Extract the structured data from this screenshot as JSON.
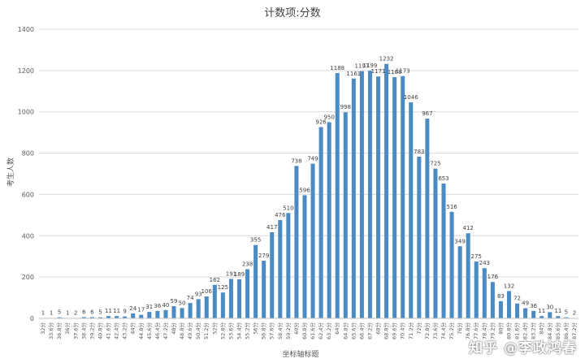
{
  "watermark": "知乎 @李政鸿春",
  "colors": {
    "bar": "#4a8bc4",
    "grid": "#d9d9d9",
    "text": "#595959",
    "label": "#404040"
  },
  "chart_data": {
    "type": "bar",
    "title": "计数项:分数",
    "xlabel": "坐标轴标题",
    "ylabel": "考生人数",
    "ylim": [
      0,
      1400
    ],
    "yticks": [
      0,
      200,
      400,
      600,
      800,
      1000,
      1200,
      1400
    ],
    "grid": true,
    "legend": "none",
    "categories": [
      "32分",
      "33.6分",
      "36.8分",
      "36分",
      "37.6分",
      "38.4分",
      "39.2分",
      "40.8分",
      "41.6分",
      "42.4分",
      "43.2分",
      "44分",
      "44.8分",
      "45.6分",
      "46.4分",
      "47.2分",
      "48分",
      "48.8分",
      "49.6分",
      "50.4分",
      "51.2分",
      "52分",
      "52.8分",
      "53.6分",
      "54.4分",
      "55.2分",
      "56分",
      "56.8分",
      "57.6分",
      "58.4分",
      "59.2分",
      "60分",
      "60.8分",
      "61.6分",
      "62.4分",
      "63.2分",
      "64分",
      "64.8分",
      "65.6分",
      "66.4分",
      "67.2分",
      "68分",
      "68.8分",
      "69.6分",
      "70.4分",
      "71.2分",
      "72分",
      "72.8分",
      "73.6分",
      "74.4分",
      "75.2分",
      "76分",
      "76.8分",
      "77.6分",
      "78.4分",
      "79.2分",
      "80分",
      "80.8分",
      "81.6分",
      "82.4分",
      "83.2分",
      "84分",
      "84.8分",
      "85.6分",
      "86.4分",
      "87.2分"
    ],
    "tick_labels": [
      "32分",
      "33.6分",
      "36.8分",
      "36分",
      "37.6分",
      "38.4分",
      "39.2分",
      "40.8分",
      "41.6分",
      "42.4分",
      "43.2分",
      "44分",
      "44.8分",
      "45.6分",
      "46.4分",
      "47.2分",
      "48分",
      "48.8分",
      "49.6分",
      "50.4分",
      "51.2分",
      "52分",
      "52.8分",
      "53.6分",
      "54.4分",
      "55.2分",
      "56分",
      "56.8分",
      "57.6分",
      "58.4分",
      "59.2分",
      "60分",
      "60.8分",
      "61.6分",
      "62.4分",
      "63.2分",
      "64分",
      "64.8分",
      "65.6分",
      "66.4分",
      "67.2分",
      "68分",
      "68.8分",
      "69.6分",
      "70.4分",
      "71.2分",
      "72分",
      "72.8分",
      "73.6分",
      "74.4分",
      "75.2分",
      "76分",
      "76.8分",
      "77.6分",
      "78.4分",
      "79.2分",
      "80分",
      "80.8分",
      "81.6分",
      "82.4分",
      "83.2分",
      "84分",
      "84.8分",
      "85.6分",
      "86.4分",
      "87.2分"
    ],
    "values": [
      1,
      1,
      5,
      1,
      2,
      6,
      6,
      5,
      11,
      11,
      9,
      24,
      17,
      31,
      36,
      40,
      59,
      50,
      74,
      93,
      106,
      162,
      125,
      191,
      189,
      238,
      355,
      279,
      417,
      476,
      510,
      738,
      596,
      749,
      926,
      950,
      1188,
      998,
      1161,
      1197,
      1199,
      1171,
      1232,
      1168,
      1173,
      1046,
      783,
      967,
      725,
      653,
      516,
      349,
      412,
      275,
      243,
      176,
      83,
      132,
      72,
      49,
      36,
      11,
      30,
      11,
      5,
      2
    ],
    "show_labels": [
      true,
      true,
      true,
      true,
      true,
      true,
      true,
      true,
      true,
      true,
      true,
      true,
      true,
      true,
      true,
      true,
      true,
      true,
      true,
      true,
      true,
      true,
      true,
      true,
      true,
      true,
      true,
      true,
      true,
      true,
      true,
      true,
      true,
      true,
      true,
      true,
      true,
      true,
      true,
      true,
      true,
      true,
      true,
      true,
      true,
      true,
      true,
      true,
      true,
      true,
      true,
      true,
      true,
      true,
      true,
      true,
      true,
      true,
      true,
      true,
      true,
      true,
      true,
      true,
      true,
      true
    ]
  }
}
